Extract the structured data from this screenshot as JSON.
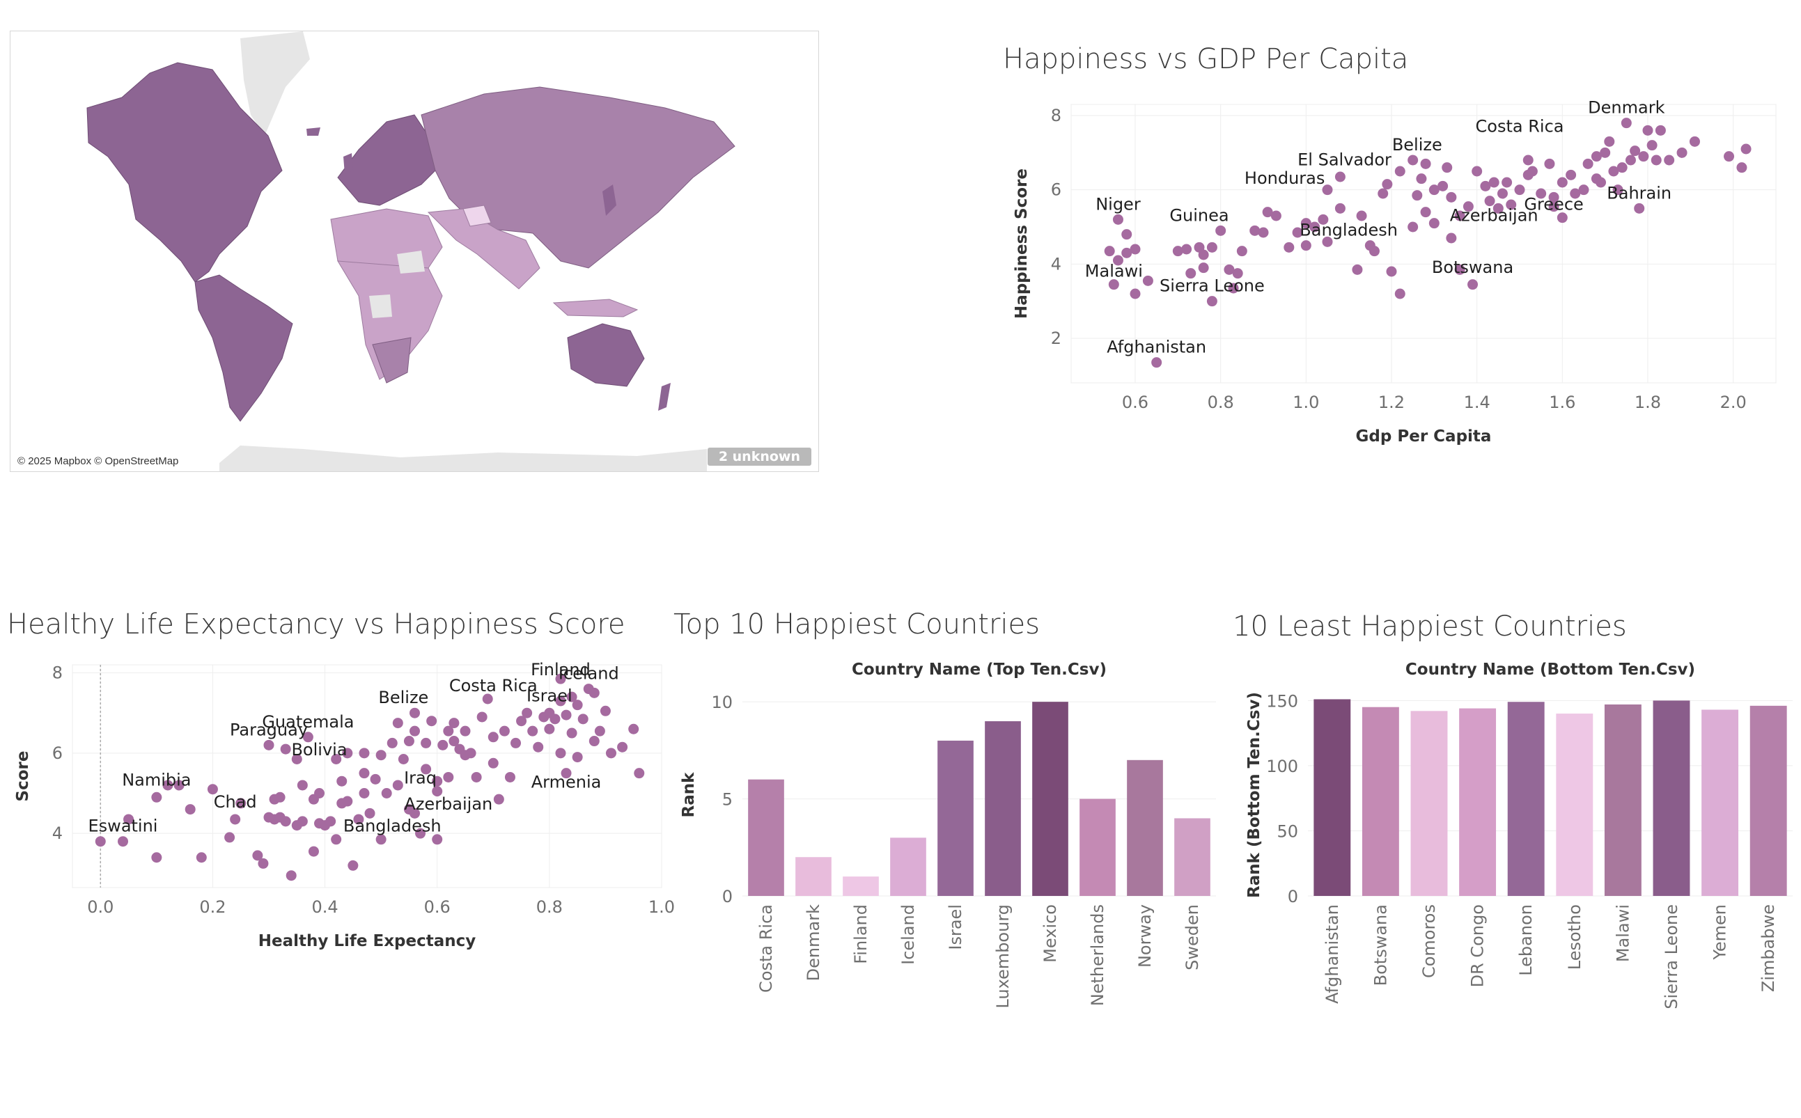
{
  "map": {
    "credit": "© 2025 Mapbox © OpenStreetMap",
    "unknown_badge": "2 unknown",
    "colors": {
      "dark": "#8d6593",
      "mid": "#a882aa",
      "light": "#c9a3c8",
      "lighter": "#e3c6e0",
      "nodata": "#e4e4e4"
    }
  },
  "chart_data": [
    {
      "id": "gdp",
      "type": "scatter",
      "title": "Happiness vs GDP Per Capita",
      "xlabel": "Gdp Per Capita",
      "ylabel": "Happiness Score",
      "xlim": [
        0.45,
        2.1
      ],
      "ylim": [
        0.8,
        8.3
      ],
      "xticks": [
        0.6,
        0.8,
        1.0,
        1.2,
        1.4,
        1.6,
        1.8,
        2.0
      ],
      "yticks": [
        2,
        4,
        6,
        8
      ],
      "grid": true,
      "color": "#a56a9f",
      "labels": [
        {
          "text": "Denmark",
          "x": 1.75,
          "y": 7.8
        },
        {
          "text": "Costa Rica",
          "x": 1.5,
          "y": 7.3
        },
        {
          "text": "Belize",
          "x": 1.26,
          "y": 6.8
        },
        {
          "text": "El Salvador",
          "x": 1.09,
          "y": 6.4
        },
        {
          "text": "Honduras",
          "x": 0.95,
          "y": 5.9
        },
        {
          "text": "Bahrain",
          "x": 1.78,
          "y": 5.5
        },
        {
          "text": "Greece",
          "x": 1.58,
          "y": 5.2
        },
        {
          "text": "Niger",
          "x": 0.56,
          "y": 5.2
        },
        {
          "text": "Guinea",
          "x": 0.75,
          "y": 4.9
        },
        {
          "text": "Azerbaijan",
          "x": 1.44,
          "y": 4.9
        },
        {
          "text": "Bangladesh",
          "x": 1.1,
          "y": 4.5
        },
        {
          "text": "Malawi",
          "x": 0.55,
          "y": 3.4
        },
        {
          "text": "Botswana",
          "x": 1.39,
          "y": 3.5
        },
        {
          "text": "Sierra Leone",
          "x": 0.78,
          "y": 3.0
        },
        {
          "text": "Afghanistan",
          "x": 0.65,
          "y": 1.35
        }
      ],
      "points": [
        [
          0.65,
          1.35
        ],
        [
          0.56,
          5.2
        ],
        [
          0.58,
          4.8
        ],
        [
          0.54,
          4.35
        ],
        [
          0.58,
          4.3
        ],
        [
          0.56,
          4.1
        ],
        [
          0.6,
          4.4
        ],
        [
          0.55,
          3.45
        ],
        [
          0.6,
          3.2
        ],
        [
          0.63,
          3.55
        ],
        [
          0.7,
          4.35
        ],
        [
          0.72,
          4.4
        ],
        [
          0.75,
          4.45
        ],
        [
          0.78,
          4.45
        ],
        [
          0.76,
          4.25
        ],
        [
          0.8,
          4.9
        ],
        [
          0.82,
          3.85
        ],
        [
          0.84,
          3.75
        ],
        [
          0.85,
          4.35
        ],
        [
          0.73,
          3.75
        ],
        [
          0.76,
          3.9
        ],
        [
          0.78,
          3.0
        ],
        [
          0.83,
          3.35
        ],
        [
          0.9,
          4.85
        ],
        [
          0.91,
          5.4
        ],
        [
          0.93,
          5.3
        ],
        [
          0.96,
          4.45
        ],
        [
          0.98,
          4.85
        ],
        [
          1.0,
          4.5
        ],
        [
          1.0,
          5.1
        ],
        [
          1.02,
          5.0
        ],
        [
          1.04,
          5.2
        ],
        [
          1.05,
          4.6
        ],
        [
          1.05,
          6.0
        ],
        [
          1.08,
          6.35
        ],
        [
          1.12,
          3.85
        ],
        [
          1.13,
          5.3
        ],
        [
          1.15,
          4.5
        ],
        [
          1.16,
          4.35
        ],
        [
          1.18,
          5.9
        ],
        [
          1.19,
          6.15
        ],
        [
          1.2,
          3.8
        ],
        [
          1.22,
          3.2
        ],
        [
          1.22,
          6.5
        ],
        [
          1.25,
          6.8
        ],
        [
          1.28,
          6.7
        ],
        [
          1.26,
          5.85
        ],
        [
          1.28,
          5.4
        ],
        [
          1.3,
          5.1
        ],
        [
          1.3,
          6.0
        ],
        [
          1.32,
          6.1
        ],
        [
          1.34,
          5.8
        ],
        [
          1.36,
          3.85
        ],
        [
          1.38,
          5.55
        ],
        [
          1.39,
          3.45
        ],
        [
          1.4,
          6.5
        ],
        [
          1.42,
          6.1
        ],
        [
          1.44,
          6.2
        ],
        [
          1.45,
          5.5
        ],
        [
          1.46,
          5.9
        ],
        [
          1.48,
          5.6
        ],
        [
          1.5,
          6.0
        ],
        [
          1.52,
          6.8
        ],
        [
          1.53,
          6.5
        ],
        [
          1.55,
          5.9
        ],
        [
          1.57,
          6.7
        ],
        [
          1.58,
          5.55
        ],
        [
          1.6,
          5.25
        ],
        [
          1.6,
          6.2
        ],
        [
          1.62,
          6.4
        ],
        [
          1.63,
          5.9
        ],
        [
          1.65,
          6.0
        ],
        [
          1.66,
          6.7
        ],
        [
          1.68,
          6.9
        ],
        [
          1.69,
          6.2
        ],
        [
          1.7,
          7.0
        ],
        [
          1.71,
          7.3
        ],
        [
          1.72,
          6.5
        ],
        [
          1.73,
          6.0
        ],
        [
          1.74,
          6.6
        ],
        [
          1.75,
          7.8
        ],
        [
          1.76,
          6.8
        ],
        [
          1.77,
          7.05
        ],
        [
          1.78,
          5.5
        ],
        [
          1.79,
          6.9
        ],
        [
          1.8,
          7.6
        ],
        [
          1.81,
          7.2
        ],
        [
          1.82,
          6.8
        ],
        [
          1.83,
          7.6
        ],
        [
          1.85,
          6.8
        ],
        [
          1.88,
          7.0
        ],
        [
          1.91,
          7.3
        ],
        [
          1.99,
          6.9
        ],
        [
          2.02,
          6.6
        ],
        [
          2.03,
          7.1
        ],
        [
          1.34,
          4.7
        ],
        [
          1.36,
          5.3
        ],
        [
          1.25,
          5.0
        ],
        [
          1.33,
          6.6
        ],
        [
          1.47,
          6.2
        ],
        [
          1.58,
          5.8
        ],
        [
          1.52,
          6.4
        ],
        [
          1.43,
          5.7
        ],
        [
          1.27,
          6.3
        ],
        [
          1.08,
          5.5
        ],
        [
          0.88,
          4.9
        ],
        [
          1.68,
          6.3
        ]
      ]
    },
    {
      "id": "life",
      "type": "scatter",
      "title": "Healthy Life Expectancy vs Happiness Score",
      "xlabel": "Healthy Life Expectancy",
      "ylabel": "Score",
      "xlim": [
        -0.05,
        1.0
      ],
      "ylim": [
        2.65,
        8.2
      ],
      "xticks": [
        0.0,
        0.2,
        0.4,
        0.6,
        0.8,
        1.0
      ],
      "yticks": [
        4,
        6,
        8
      ],
      "grid": true,
      "color": "#a56a9f",
      "labels": [
        {
          "text": "Iceland",
          "x": 0.87,
          "y": 7.6
        },
        {
          "text": "Finland",
          "x": 0.82,
          "y": 7.7
        },
        {
          "text": "Costa Rica",
          "x": 0.7,
          "y": 7.3
        },
        {
          "text": "Israel",
          "x": 0.8,
          "y": 7.05
        },
        {
          "text": "Belize",
          "x": 0.54,
          "y": 7.0
        },
        {
          "text": "Guatemala",
          "x": 0.37,
          "y": 6.4
        },
        {
          "text": "Paraguay",
          "x": 0.3,
          "y": 6.2
        },
        {
          "text": "Bolivia",
          "x": 0.39,
          "y": 5.7
        },
        {
          "text": "Armenia",
          "x": 0.83,
          "y": 4.9
        },
        {
          "text": "Namibia",
          "x": 0.1,
          "y": 4.95
        },
        {
          "text": "Iraq",
          "x": 0.57,
          "y": 5.0
        },
        {
          "text": "Chad",
          "x": 0.24,
          "y": 4.4
        },
        {
          "text": "Azerbaijan",
          "x": 0.62,
          "y": 4.35
        },
        {
          "text": "Eswatini",
          "x": 0.04,
          "y": 3.8
        },
        {
          "text": "Bangladesh",
          "x": 0.52,
          "y": 3.8
        }
      ],
      "points": [
        [
          0.0,
          3.8
        ],
        [
          0.04,
          3.8
        ],
        [
          0.05,
          4.35
        ],
        [
          0.1,
          3.4
        ],
        [
          0.1,
          4.9
        ],
        [
          0.12,
          5.2
        ],
        [
          0.14,
          5.2
        ],
        [
          0.18,
          3.4
        ],
        [
          0.2,
          5.1
        ],
        [
          0.23,
          3.9
        ],
        [
          0.24,
          4.35
        ],
        [
          0.25,
          4.75
        ],
        [
          0.28,
          3.45
        ],
        [
          0.29,
          3.25
        ],
        [
          0.3,
          6.2
        ],
        [
          0.31,
          4.35
        ],
        [
          0.31,
          4.85
        ],
        [
          0.32,
          4.9
        ],
        [
          0.32,
          4.4
        ],
        [
          0.33,
          6.1
        ],
        [
          0.33,
          4.3
        ],
        [
          0.34,
          2.95
        ],
        [
          0.35,
          4.2
        ],
        [
          0.35,
          5.85
        ],
        [
          0.36,
          4.3
        ],
        [
          0.37,
          6.4
        ],
        [
          0.38,
          4.85
        ],
        [
          0.38,
          3.55
        ],
        [
          0.39,
          5.0
        ],
        [
          0.4,
          4.2
        ],
        [
          0.41,
          4.3
        ],
        [
          0.42,
          3.85
        ],
        [
          0.42,
          5.85
        ],
        [
          0.43,
          4.75
        ],
        [
          0.44,
          4.8
        ],
        [
          0.44,
          6.0
        ],
        [
          0.45,
          3.2
        ],
        [
          0.46,
          4.35
        ],
        [
          0.47,
          6.0
        ],
        [
          0.47,
          5.5
        ],
        [
          0.48,
          4.5
        ],
        [
          0.49,
          5.35
        ],
        [
          0.5,
          3.85
        ],
        [
          0.5,
          5.95
        ],
        [
          0.51,
          5.0
        ],
        [
          0.52,
          6.25
        ],
        [
          0.53,
          6.75
        ],
        [
          0.54,
          5.85
        ],
        [
          0.55,
          4.6
        ],
        [
          0.55,
          6.3
        ],
        [
          0.56,
          6.55
        ],
        [
          0.56,
          7.0
        ],
        [
          0.57,
          4.0
        ],
        [
          0.58,
          5.6
        ],
        [
          0.58,
          6.25
        ],
        [
          0.59,
          6.8
        ],
        [
          0.6,
          3.85
        ],
        [
          0.6,
          5.05
        ],
        [
          0.61,
          6.2
        ],
        [
          0.62,
          6.55
        ],
        [
          0.62,
          5.4
        ],
        [
          0.63,
          6.3
        ],
        [
          0.63,
          6.75
        ],
        [
          0.64,
          6.1
        ],
        [
          0.65,
          5.95
        ],
        [
          0.65,
          6.55
        ],
        [
          0.66,
          6.0
        ],
        [
          0.67,
          5.4
        ],
        [
          0.68,
          6.9
        ],
        [
          0.69,
          7.35
        ],
        [
          0.7,
          5.75
        ],
        [
          0.7,
          6.4
        ],
        [
          0.71,
          4.85
        ],
        [
          0.72,
          6.55
        ],
        [
          0.73,
          5.4
        ],
        [
          0.74,
          6.25
        ],
        [
          0.75,
          6.8
        ],
        [
          0.76,
          7.0
        ],
        [
          0.77,
          6.55
        ],
        [
          0.78,
          6.15
        ],
        [
          0.79,
          6.9
        ],
        [
          0.8,
          7.0
        ],
        [
          0.8,
          6.6
        ],
        [
          0.81,
          6.85
        ],
        [
          0.82,
          7.85
        ],
        [
          0.82,
          7.3
        ],
        [
          0.82,
          6.0
        ],
        [
          0.83,
          5.5
        ],
        [
          0.83,
          6.95
        ],
        [
          0.84,
          7.4
        ],
        [
          0.84,
          6.5
        ],
        [
          0.85,
          7.2
        ],
        [
          0.85,
          5.9
        ],
        [
          0.86,
          6.85
        ],
        [
          0.87,
          7.6
        ],
        [
          0.88,
          7.5
        ],
        [
          0.88,
          6.3
        ],
        [
          0.89,
          6.55
        ],
        [
          0.9,
          7.05
        ],
        [
          0.91,
          6.0
        ],
        [
          0.93,
          6.15
        ],
        [
          0.95,
          6.6
        ],
        [
          0.96,
          5.5
        ],
        [
          0.56,
          4.5
        ],
        [
          0.47,
          5.0
        ],
        [
          0.39,
          4.25
        ],
        [
          0.36,
          5.2
        ],
        [
          0.3,
          4.4
        ],
        [
          0.16,
          4.6
        ],
        [
          0.6,
          5.3
        ],
        [
          0.43,
          5.3
        ],
        [
          0.53,
          5.2
        ]
      ]
    },
    {
      "id": "top10",
      "type": "bar",
      "title": "Top 10 Happiest Countries",
      "header": "Country Name (Top Ten.Csv)",
      "ylabel": "Rank",
      "ylim": [
        0,
        10.4
      ],
      "yticks": [
        0,
        5,
        10
      ],
      "grid": true,
      "categories": [
        "Costa Rica",
        "Denmark",
        "Finland",
        "Iceland",
        "Israel",
        "Luxembourg",
        "Mexico",
        "Netherlands",
        "Norway",
        "Sweden"
      ],
      "values": [
        6,
        2,
        1,
        3,
        8,
        9,
        10,
        5,
        7,
        4
      ],
      "colors": [
        "#b580aa",
        "#e8bcdc",
        "#eec7e5",
        "#dcadd5",
        "#946897",
        "#8a5d8b",
        "#7b4b77",
        "#c48ab4",
        "#a8789d",
        "#d0a0c5"
      ]
    },
    {
      "id": "bottom10",
      "type": "bar",
      "title": "10 Least Happiest Countries",
      "header": "Country Name (Bottom Ten.Csv)",
      "ylabel": "Rank (Bottom Ten.Csv)",
      "ylim": [
        0,
        155
      ],
      "yticks": [
        0,
        50,
        100,
        150
      ],
      "grid": true,
      "categories": [
        "Afghanistan",
        "Botswana",
        "Comoros",
        "DR Congo",
        "Lebanon",
        "Lesotho",
        "Malawi",
        "Sierra Leone",
        "Yemen",
        "Zimbabwe"
      ],
      "values": [
        151,
        145,
        142,
        144,
        149,
        140,
        147,
        150,
        143,
        146
      ],
      "colors": [
        "#7b4b77",
        "#c48ab4",
        "#e8bcdc",
        "#d59ec8",
        "#946897",
        "#eec7e5",
        "#a8789d",
        "#8a5d8b",
        "#dcadd5",
        "#b580aa"
      ]
    }
  ]
}
